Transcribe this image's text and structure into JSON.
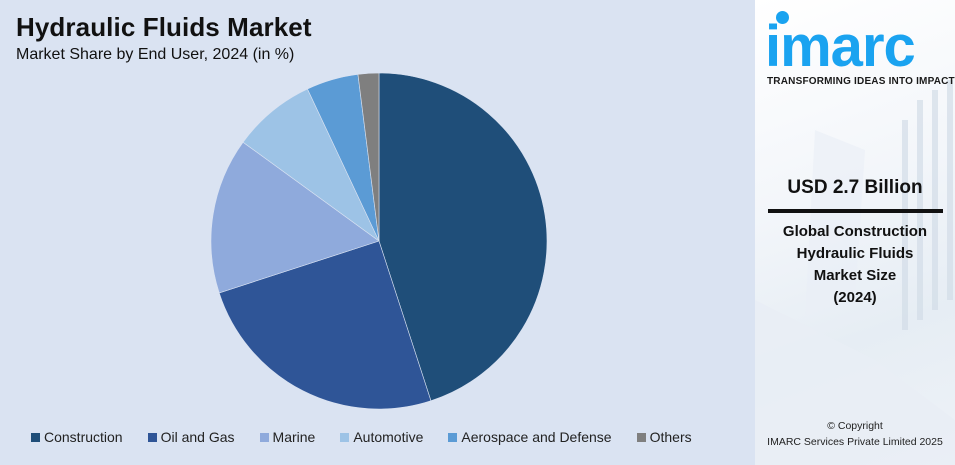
{
  "header": {
    "title": "Hydraulic Fluids Market",
    "subtitle": "Market Share by End User, 2024 (in %)"
  },
  "chart_data": {
    "type": "pie",
    "title": "Hydraulic Fluids Market",
    "subtitle": "Market Share by End User, 2024 (in %)",
    "categories": [
      "Construction",
      "Oil and Gas",
      "Marine",
      "Automotive",
      "Aerospace and Defense",
      "Others"
    ],
    "values": [
      45,
      25,
      15,
      8,
      5,
      2
    ],
    "colors": [
      "#1f4e79",
      "#2f5597",
      "#8faadc",
      "#9dc3e6",
      "#5b9bd5",
      "#7f7f7f"
    ],
    "start_angle_deg": 0,
    "direction": "clockwise",
    "legend_position": "bottom"
  },
  "legend": {
    "items": [
      {
        "label": "Construction",
        "color": "#1f4e79"
      },
      {
        "label": "Oil and Gas",
        "color": "#2f5597"
      },
      {
        "label": "Marine",
        "color": "#8faadc"
      },
      {
        "label": "Automotive",
        "color": "#9dc3e6"
      },
      {
        "label": "Aerospace and Defense",
        "color": "#5b9bd5"
      },
      {
        "label": "Others",
        "color": "#7f7f7f"
      }
    ]
  },
  "sidebar": {
    "logo_text": "imarc",
    "tagline": "TRANSFORMING IDEAS INTO IMPACT",
    "brand_color": "#1aa3f0",
    "market_value": "USD 2.7 Billion",
    "description_lines": [
      "Global Construction",
      "Hydraulic Fluids",
      "Market Size",
      "(2024)"
    ],
    "copyright_line1": "© Copyright",
    "copyright_line2": "IMARC Services Private Limited 2025"
  }
}
